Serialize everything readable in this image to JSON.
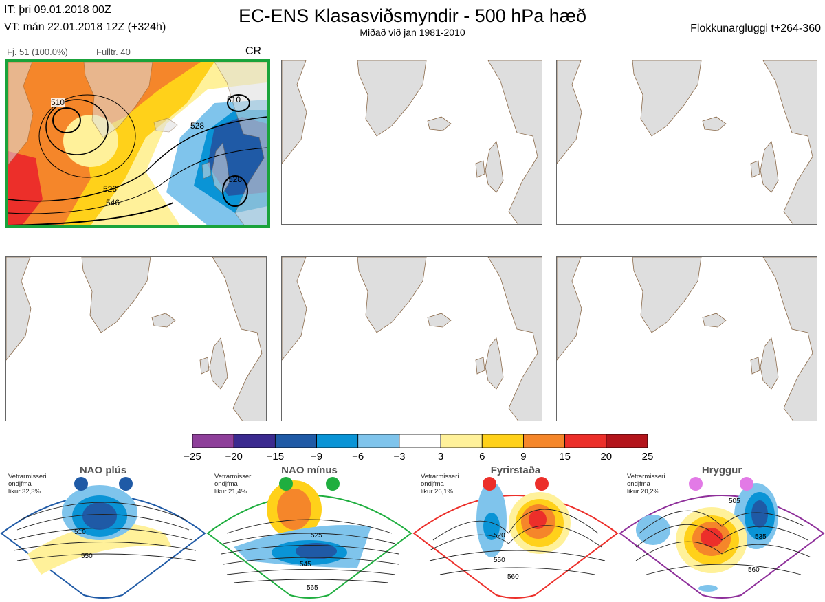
{
  "header": {
    "init_time": "IT: þri 09.01.2018 00Z",
    "valid_time": "VT: mán 22.01.2018 12Z  (+324h)",
    "title": "EC-ENS Klasasviðsmyndir - 500 hPa hæð",
    "subtitle": "Miðað við jan 1981-2010",
    "window": "Flokkunargluggi t+264-360"
  },
  "panel1": {
    "members": "Fj. 51 (100.0%)",
    "representative": "Fulltr. 40",
    "regime_code": "CR",
    "contour_labels": [
      "510",
      "528",
      "528",
      "528",
      "546"
    ],
    "frame_color": "#1aa33b"
  },
  "colorbar": {
    "colors": [
      "#8e3f9a",
      "#3b2a8f",
      "#1f5aa6",
      "#0a94d6",
      "#7fc4ec",
      "#ffffff",
      "#fff19a",
      "#ffd11a",
      "#f5862a",
      "#ec2f2a",
      "#b3141b"
    ],
    "ticks": [
      "−25",
      "−20",
      "−15",
      "−9",
      "−6",
      "−3",
      "3",
      "6",
      "9",
      "15",
      "20",
      "25"
    ]
  },
  "regimes": [
    {
      "name": "NAO plús",
      "prob": [
        "Vetrarmisseri",
        "ondjfma",
        "likur 32,3%"
      ],
      "color": "#1f5aa6",
      "contours": [
        "510",
        "550"
      ]
    },
    {
      "name": "NAO mínus",
      "prob": [
        "Vetrarmisseri",
        "ondjfma",
        "likur 21,4%"
      ],
      "color": "#1fae3f",
      "contours": [
        "525",
        "545",
        "565"
      ]
    },
    {
      "name": "Fyrirstaða",
      "prob": [
        "Vetrarmisseri",
        "ondjfma",
        "likur 26,1%"
      ],
      "color": "#ec2f2a",
      "contours": [
        "520",
        "550",
        "560"
      ]
    },
    {
      "name": "Hryggur",
      "prob": [
        "Vetrarmisseri",
        "ondjfma",
        "likur 20,2%"
      ],
      "color": "#e27ae6",
      "contours": [
        "505",
        "535",
        "560"
      ]
    }
  ]
}
